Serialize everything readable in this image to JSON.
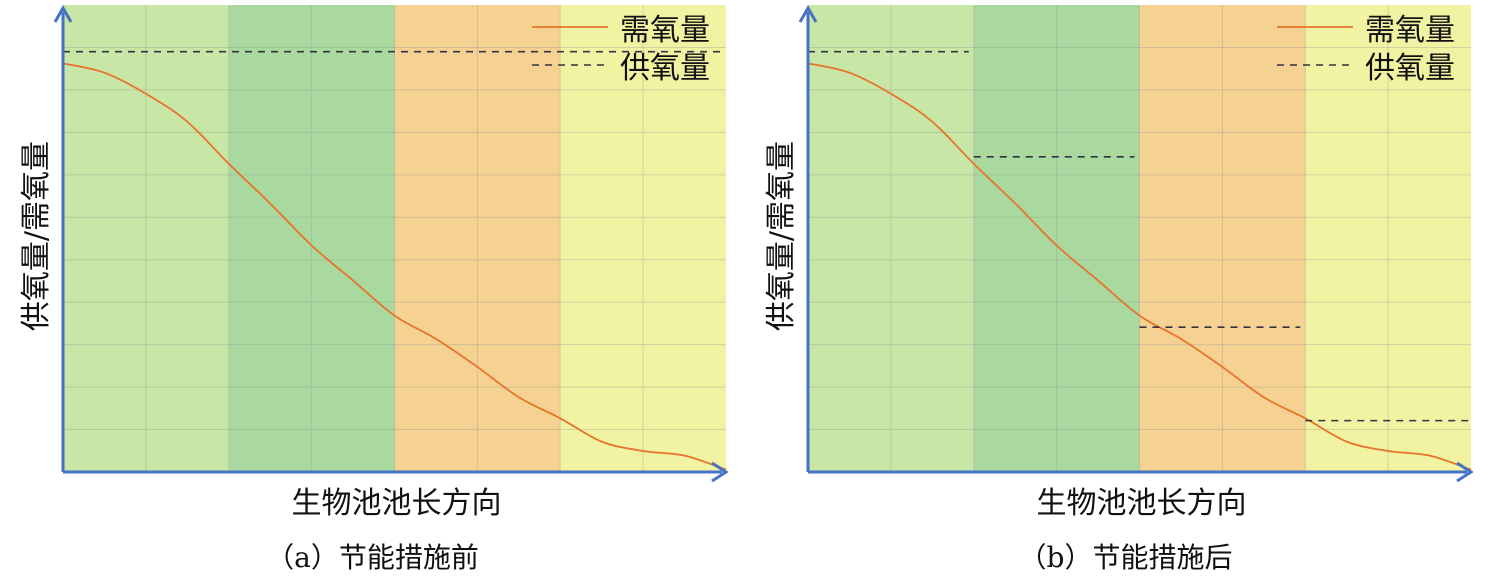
{
  "chart_data": [
    {
      "type": "line",
      "caption": "（a）节能措施前",
      "xlabel": "生物池池长方向",
      "ylabel": "供氧量/需氧量",
      "xlim": [
        0,
        4
      ],
      "ylim": [
        0,
        10
      ],
      "zones": [
        {
          "from": 0,
          "to": 1,
          "color": "#c8e6a6"
        },
        {
          "from": 1,
          "to": 2,
          "color": "#a9d99e"
        },
        {
          "from": 2,
          "to": 3,
          "color": "#f5d292"
        },
        {
          "from": 3,
          "to": 4,
          "color": "#f1f3a2"
        }
      ],
      "grid": true,
      "legend": {
        "position": "top-right",
        "items": [
          {
            "name": "需氧量",
            "style": "solid",
            "color": "#e8732c"
          },
          {
            "name": "供氧量",
            "style": "dashed",
            "color": "#334"
          }
        ]
      },
      "series": [
        {
          "name": "需氧量",
          "style": "solid",
          "color": "#e8732c",
          "x": [
            0,
            0.25,
            0.5,
            0.75,
            1.0,
            1.25,
            1.5,
            1.75,
            2.0,
            2.25,
            2.5,
            2.75,
            3.0,
            3.25,
            3.5,
            3.75,
            4.0
          ],
          "y": [
            8.75,
            8.55,
            8.1,
            7.5,
            6.6,
            5.75,
            4.85,
            4.1,
            3.35,
            2.85,
            2.25,
            1.6,
            1.15,
            0.65,
            0.45,
            0.35,
            0.05
          ]
        },
        {
          "name": "供氧量",
          "style": "dashed",
          "color": "#334",
          "segments": [
            {
              "x": [
                0,
                4
              ],
              "y": 9.0
            }
          ]
        }
      ]
    },
    {
      "type": "line",
      "caption": "（b）节能措施后",
      "xlabel": "生物池池长方向",
      "ylabel": "供氧量/需氧量",
      "xlim": [
        0,
        4
      ],
      "ylim": [
        0,
        10
      ],
      "zones": [
        {
          "from": 0,
          "to": 1,
          "color": "#c8e6a6"
        },
        {
          "from": 1,
          "to": 2,
          "color": "#a9d99e"
        },
        {
          "from": 2,
          "to": 3,
          "color": "#f5d292"
        },
        {
          "from": 3,
          "to": 4,
          "color": "#f1f3a2"
        }
      ],
      "grid": true,
      "legend": {
        "position": "top-right",
        "items": [
          {
            "name": "需氧量",
            "style": "solid",
            "color": "#e8732c"
          },
          {
            "name": "供氧量",
            "style": "dashed",
            "color": "#334"
          }
        ]
      },
      "series": [
        {
          "name": "需氧量",
          "style": "solid",
          "color": "#e8732c",
          "x": [
            0,
            0.25,
            0.5,
            0.75,
            1.0,
            1.25,
            1.5,
            1.75,
            2.0,
            2.25,
            2.5,
            2.75,
            3.0,
            3.25,
            3.5,
            3.75,
            4.0
          ],
          "y": [
            8.75,
            8.55,
            8.1,
            7.5,
            6.6,
            5.75,
            4.85,
            4.1,
            3.35,
            2.85,
            2.25,
            1.6,
            1.15,
            0.65,
            0.45,
            0.35,
            0.05
          ]
        },
        {
          "name": "供氧量",
          "style": "dashed",
          "color": "#334",
          "segments": [
            {
              "x": [
                0,
                0.97
              ],
              "y": 9.0
            },
            {
              "x": [
                1.0,
                1.97
              ],
              "y": 6.75
            },
            {
              "x": [
                2.0,
                2.97
              ],
              "y": 3.1
            },
            {
              "x": [
                3.0,
                4.0
              ],
              "y": 1.1
            }
          ]
        }
      ]
    }
  ]
}
